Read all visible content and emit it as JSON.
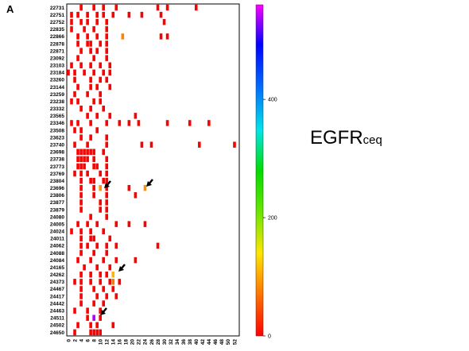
{
  "panel_label": "A",
  "colorbar": {
    "title": "EGFR",
    "title_sub": "ceq",
    "ticks": [
      0,
      200,
      400
    ],
    "range": [
      0,
      560
    ]
  },
  "chart_data": {
    "type": "heatmap",
    "title": "",
    "xlabel": "",
    "ylabel": "",
    "x_ticks": [
      0,
      2,
      4,
      6,
      8,
      10,
      12,
      14,
      16,
      18,
      20,
      22,
      24,
      26,
      28,
      30,
      32,
      34,
      36,
      38,
      40,
      42,
      44,
      46,
      48,
      50,
      52
    ],
    "xlim": [
      0,
      53
    ],
    "grid": false,
    "rows": [
      "22731",
      "22751",
      "22752",
      "22835",
      "22866",
      "22878",
      "22871",
      "23092",
      "23103",
      "23184",
      "23260",
      "23144",
      "23259",
      "23238",
      "23332",
      "23565",
      "23346",
      "23508",
      "23623",
      "23740",
      "23698",
      "23738",
      "23773",
      "23769",
      "23804",
      "23696",
      "23806",
      "23877",
      "23879",
      "24080",
      "24005",
      "24024",
      "24011",
      "24062",
      "24088",
      "24084",
      "24165",
      "24262",
      "24373",
      "24467",
      "24417",
      "24442",
      "24463",
      "24511",
      "24502",
      "24650"
    ],
    "cells": [
      {
        "row": "22731",
        "x": [
          4,
          8,
          11,
          15,
          28,
          31,
          40
        ],
        "value": 0
      },
      {
        "row": "22751",
        "x": [
          1,
          3,
          6,
          9,
          11,
          14,
          19,
          23,
          29
        ],
        "value": 0
      },
      {
        "row": "22752",
        "x": [
          1,
          4,
          6,
          9,
          12,
          30
        ],
        "value": 0
      },
      {
        "row": "22835",
        "x": [
          1,
          5,
          8,
          12
        ],
        "value": 0
      },
      {
        "row": "22866",
        "x": [
          3,
          6,
          9,
          12,
          29,
          31
        ],
        "value": 0
      },
      {
        "row": "22866",
        "x": [
          17
        ],
        "value": 80
      },
      {
        "row": "22878",
        "x": [
          3,
          6,
          7,
          10,
          12
        ],
        "value": 0
      },
      {
        "row": "22871",
        "x": [
          4,
          7,
          9,
          12
        ],
        "value": 0
      },
      {
        "row": "23092",
        "x": [
          3,
          8,
          12
        ],
        "value": 0
      },
      {
        "row": "23103",
        "x": [
          1,
          4,
          7,
          10,
          13
        ],
        "value": 0
      },
      {
        "row": "23184",
        "x": [
          0,
          2,
          5,
          8,
          11,
          13
        ],
        "value": 0
      },
      {
        "row": "23260",
        "x": [
          2,
          7,
          10,
          12
        ],
        "value": 0
      },
      {
        "row": "23144",
        "x": [
          3,
          7,
          9,
          13
        ],
        "value": 0
      },
      {
        "row": "23259",
        "x": [
          2,
          6,
          10
        ],
        "value": 0
      },
      {
        "row": "23238",
        "x": [
          1,
          3,
          8,
          10
        ],
        "value": 0
      },
      {
        "row": "23332",
        "x": [
          4,
          7,
          11
        ],
        "value": 0
      },
      {
        "row": "23565",
        "x": [
          6,
          9,
          13,
          21
        ],
        "value": 0
      },
      {
        "row": "23346",
        "x": [
          1,
          3,
          7,
          12,
          16,
          19,
          22,
          31,
          38,
          44
        ],
        "value": 0
      },
      {
        "row": "23508",
        "x": [
          2,
          4,
          9
        ],
        "value": 0
      },
      {
        "row": "23623",
        "x": [
          4,
          7,
          12
        ],
        "value": 0
      },
      {
        "row": "23740",
        "x": [
          2,
          6,
          12,
          23,
          26,
          41,
          52
        ],
        "value": 0
      },
      {
        "row": "23698",
        "x": [
          3,
          4,
          5,
          6,
          7,
          8,
          11
        ],
        "value": 0
      },
      {
        "row": "23738",
        "x": [
          3,
          4,
          5,
          6,
          8,
          12
        ],
        "value": 0
      },
      {
        "row": "23773",
        "x": [
          3,
          4,
          5,
          8,
          9,
          12
        ],
        "value": 0
      },
      {
        "row": "23769",
        "x": [
          2,
          4,
          6,
          10,
          12
        ],
        "value": 0
      },
      {
        "row": "23804",
        "x": [
          4,
          7,
          8,
          11,
          12
        ],
        "value": 0
      },
      {
        "row": "23696",
        "x": [
          4,
          8,
          12,
          19
        ],
        "value": 0
      },
      {
        "row": "23696",
        "x": [
          10,
          24
        ],
        "value": 90
      },
      {
        "row": "23806",
        "x": [
          4,
          8,
          12,
          21
        ],
        "value": 0
      },
      {
        "row": "23877",
        "x": [
          4,
          10,
          12
        ],
        "value": 0
      },
      {
        "row": "23879",
        "x": [
          4,
          10,
          12
        ],
        "value": 0
      },
      {
        "row": "24080",
        "x": [
          7,
          12
        ],
        "value": 0
      },
      {
        "row": "24005",
        "x": [
          3,
          6,
          9,
          15,
          19,
          24
        ],
        "value": 0
      },
      {
        "row": "24024",
        "x": [
          1,
          4,
          7,
          11
        ],
        "value": 0
      },
      {
        "row": "24011",
        "x": [
          4,
          7,
          8,
          13
        ],
        "value": 0
      },
      {
        "row": "24062",
        "x": [
          4,
          6,
          9,
          12,
          15,
          28
        ],
        "value": 0
      },
      {
        "row": "24088",
        "x": [
          4,
          8,
          12
        ],
        "value": 0
      },
      {
        "row": "24084",
        "x": [
          3,
          7,
          11,
          15,
          21
        ],
        "value": 0
      },
      {
        "row": "24165",
        "x": [
          5,
          9,
          13
        ],
        "value": 0
      },
      {
        "row": "24262",
        "x": [
          4,
          7,
          10,
          12
        ],
        "value": 0
      },
      {
        "row": "24262",
        "x": [
          14
        ],
        "value": 110
      },
      {
        "row": "24373",
        "x": [
          2,
          4,
          7,
          10,
          13,
          16
        ],
        "value": 0
      },
      {
        "row": "24373",
        "x": [
          14
        ],
        "value": 70
      },
      {
        "row": "24467",
        "x": [
          4,
          8,
          11,
          14
        ],
        "value": 0
      },
      {
        "row": "24417",
        "x": [
          4,
          9,
          12,
          15
        ],
        "value": 0
      },
      {
        "row": "24442",
        "x": [
          4,
          8,
          11
        ],
        "value": 0
      },
      {
        "row": "24463",
        "x": [
          2,
          6,
          10
        ],
        "value": 0
      },
      {
        "row": "24511",
        "x": [
          6,
          10
        ],
        "value": 0
      },
      {
        "row": "24511",
        "x": [
          8
        ],
        "value": 540
      },
      {
        "row": "24502",
        "x": [
          3,
          7,
          9,
          14
        ],
        "value": 0
      },
      {
        "row": "24650",
        "x": [
          2,
          7,
          8,
          9,
          10
        ],
        "value": 0
      }
    ]
  }
}
